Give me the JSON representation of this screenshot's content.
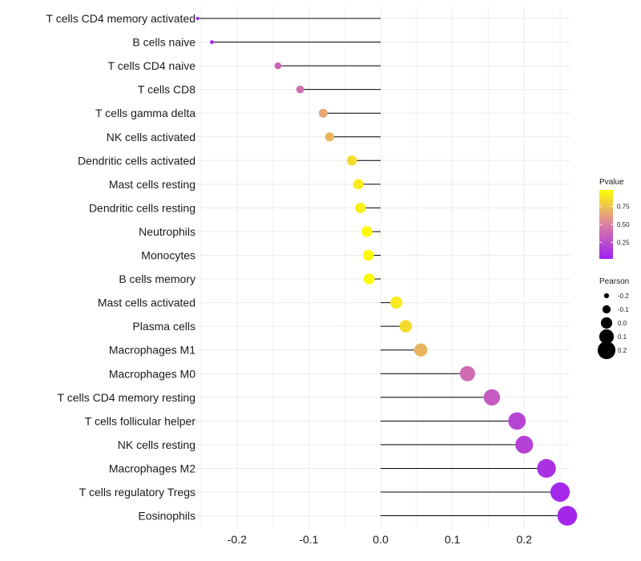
{
  "chart_data": {
    "type": "lollipop",
    "xlabel": "",
    "ylabel": "",
    "xlim": [
      -0.255,
      0.26
    ],
    "xticks": [
      -0.2,
      -0.1,
      0.0,
      0.1,
      0.2
    ],
    "xtick_labels": [
      "-0.2",
      "-0.1",
      "0.0",
      "0.1",
      "0.2"
    ],
    "grid": true,
    "legend_placement": "right",
    "colors": {
      "low": "#a020f0",
      "mid": "#db7fa3",
      "high": "#ffff00",
      "line": "#000000",
      "grid": "#ebebeb"
    },
    "color_legend": {
      "title": "Pvalue",
      "ticks": [
        0.25,
        0.5,
        0.75
      ],
      "tick_labels": [
        "0.25",
        "0.50",
        "0.75"
      ],
      "range": [
        0.02,
        0.98
      ]
    },
    "size_legend": {
      "title": "Pearson",
      "values": [
        -0.2,
        -0.1,
        0.0,
        0.1,
        0.2
      ],
      "labels": [
        "-0.2",
        "-0.1",
        "0.0",
        "0.1",
        "0.2"
      ]
    },
    "categories": [
      "T cells CD4 memory activated",
      "B cells naive",
      "T cells CD4 naive",
      "T cells CD8",
      "T cells gamma delta",
      "NK cells activated",
      "Dendritic cells activated",
      "Mast cells resting",
      "Dendritic cells resting",
      "Neutrophils",
      "Monocytes",
      "B cells memory",
      "Mast cells activated",
      "Plasma cells",
      "Macrophages M1",
      "Macrophages M0",
      "T cells CD4 memory resting",
      "T cells follicular helper",
      "NK cells resting",
      "Macrophages M2",
      "T cells regulatory  Tregs",
      "Eosinophils"
    ],
    "values": [
      -0.255,
      -0.235,
      -0.143,
      -0.112,
      -0.08,
      -0.071,
      -0.04,
      -0.031,
      -0.028,
      -0.019,
      -0.017,
      -0.016,
      0.022,
      0.035,
      0.056,
      0.121,
      0.155,
      0.19,
      0.2,
      0.231,
      0.25,
      0.26
    ],
    "pvalues": [
      0.02,
      0.05,
      0.35,
      0.42,
      0.65,
      0.7,
      0.85,
      0.9,
      0.92,
      0.96,
      0.96,
      0.96,
      0.9,
      0.85,
      0.7,
      0.4,
      0.32,
      0.2,
      0.18,
      0.1,
      0.06,
      0.05
    ]
  }
}
